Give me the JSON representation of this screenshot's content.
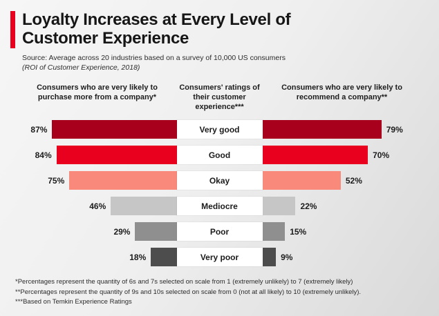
{
  "title": "Loyalty Increases at Every Level of Customer Experience",
  "source": {
    "line1": "Source: Average across 20 industries based on a survey of 10,000 US consumers",
    "line2": "(ROI of Customer Experience, 2018)"
  },
  "columns": {
    "left": "Consumers who are very likely to purchase more from a company*",
    "center": "Consumers' ratings of their customer experience***",
    "right": "Consumers who are very likely to recommend a company**"
  },
  "rows": [
    {
      "label": "Very good",
      "left": "87%",
      "right": "79%"
    },
    {
      "label": "Good",
      "left": "84%",
      "right": "70%"
    },
    {
      "label": "Okay",
      "left": "75%",
      "right": "52%"
    },
    {
      "label": "Mediocre",
      "left": "46%",
      "right": "22%"
    },
    {
      "label": "Poor",
      "left": "29%",
      "right": "15%"
    },
    {
      "label": "Very poor",
      "left": "18%",
      "right": "9%"
    }
  ],
  "chart_data": {
    "type": "bar",
    "title": "Loyalty Increases at Every Level of Customer Experience",
    "categories": [
      "Very good",
      "Good",
      "Okay",
      "Mediocre",
      "Poor",
      "Very poor"
    ],
    "series": [
      {
        "name": "Consumers who are very likely to purchase more from a company",
        "values": [
          87,
          84,
          75,
          46,
          29,
          18
        ]
      },
      {
        "name": "Consumers who are very likely to recommend a company",
        "values": [
          79,
          70,
          52,
          22,
          15,
          9
        ]
      }
    ],
    "colors": [
      "#a8001c",
      "#e8001e",
      "#f9897b",
      "#c6c6c6",
      "#8f8f8f",
      "#4d4d4d"
    ],
    "xlabel": "",
    "ylabel": "",
    "value_unit": "%",
    "layout": "butterfly",
    "xlim": [
      0,
      100
    ],
    "grid": false,
    "legend_position": "top-as-column-headers",
    "accent_color": "#e8001e"
  },
  "footnotes": {
    "f1": "*Percentages represent the quantity of 6s and 7s selected on scale from 1 (extremely unlikely) to 7 (extremely likely)",
    "f2": "**Percentages represent the quantity of 9s and 10s selected on scale from 0 (not at all likely) to 10 (extremely unlikely).",
    "f3": "***Based on Temkin Experience Ratings"
  }
}
